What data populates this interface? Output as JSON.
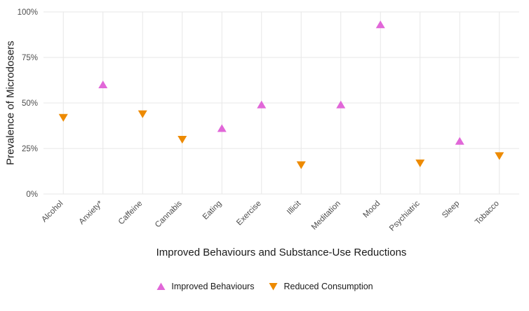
{
  "chart_data": {
    "type": "scatter",
    "title": "",
    "xlabel": "Improved Behaviours and Substance-Use Reductions",
    "ylabel": "Prevalence of Microdosers",
    "categories": [
      "Alcohol",
      "Anxiety*",
      "Caffeine",
      "Cannabis",
      "Eating",
      "Exercise",
      "Illicit",
      "Meditation",
      "Mood",
      "Psychiatric",
      "Sleep",
      "Tobacco"
    ],
    "yticks": [
      0,
      25,
      50,
      75,
      100
    ],
    "ytick_labels": [
      "0%",
      "25%",
      "50%",
      "75%",
      "100%"
    ],
    "ylim": [
      0,
      100
    ],
    "grid": true,
    "legend_position": "bottom",
    "colors": {
      "improved": "#e167d8",
      "reduced": "#ed8a00",
      "gridline": "#e7e7e7",
      "tick_text": "#4d4d4d"
    },
    "series": [
      {
        "name": "Improved Behaviours",
        "marker": "triangle-up",
        "color": "#e167d8",
        "values": [
          null,
          60,
          null,
          null,
          36,
          49,
          null,
          49,
          93,
          null,
          29,
          null
        ]
      },
      {
        "name": "Reduced Consumption",
        "marker": "triangle-down",
        "color": "#ed8a00",
        "values": [
          42,
          null,
          44,
          30,
          null,
          null,
          16,
          null,
          null,
          17,
          null,
          21
        ]
      }
    ]
  }
}
